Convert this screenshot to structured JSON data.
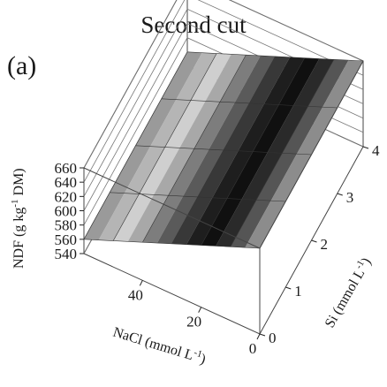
{
  "chart_data": {
    "type": "surface",
    "title": "Second cut",
    "panel_label": "(a)",
    "z_axis": {
      "label_main": "NDF (g kg",
      "label_sup": "-1",
      "label_end": " DM)",
      "ticks": [
        540,
        560,
        580,
        600,
        620,
        640,
        660
      ],
      "range": [
        540,
        660
      ]
    },
    "x_axis": {
      "label_main": "NaCl (mmol L",
      "label_sup": "-1",
      "label_end": ")",
      "ticks": [
        0,
        20,
        40
      ],
      "range": [
        0,
        60
      ]
    },
    "y_axis": {
      "label_main": "Si (mmol L",
      "label_sup": "-1",
      "label_end": ")",
      "ticks": [
        0,
        1,
        2,
        3,
        4
      ],
      "range": [
        0,
        4
      ]
    },
    "surface": {
      "z_at_nacl_60": 560,
      "z_at_nacl_0": 660,
      "si_dependence": "none"
    }
  }
}
